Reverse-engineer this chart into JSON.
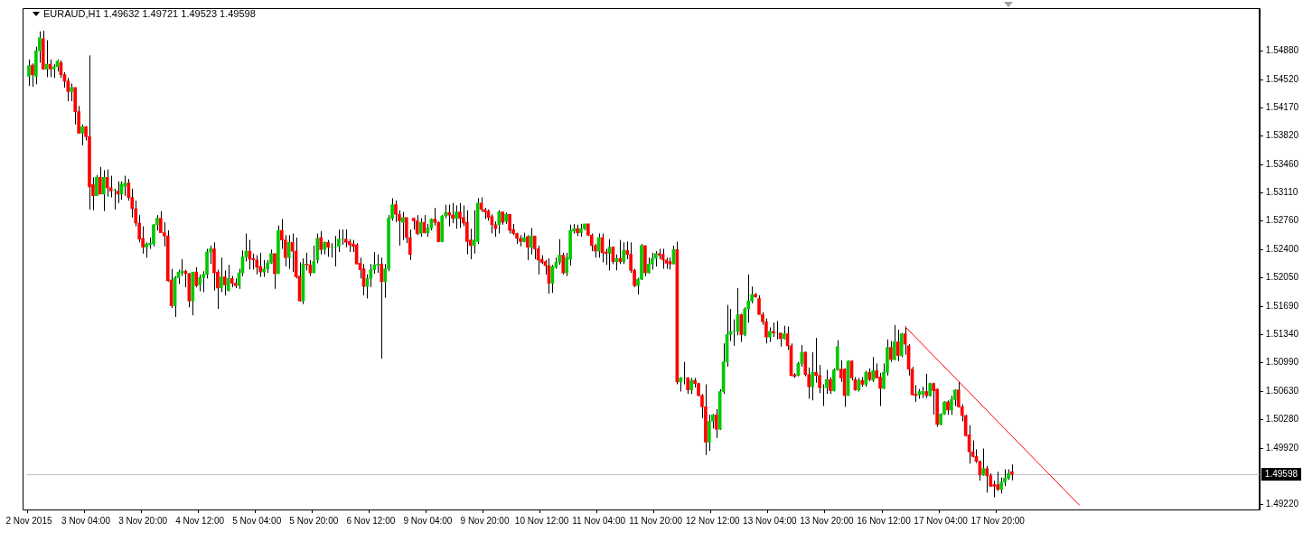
{
  "chart_data": {
    "type": "candlestick",
    "title": "EURAUD,H1  1.49632 1.49721 1.49523 1.49598",
    "categories": [
      "2 Nov 2015",
      null,
      null,
      null,
      null,
      null,
      null,
      null,
      null,
      null,
      null,
      null,
      null,
      null,
      null,
      null,
      "3 Nov 04:00",
      null,
      null,
      null,
      null,
      null,
      null,
      null,
      null,
      null,
      null,
      null,
      null,
      null,
      null,
      null,
      "3 Nov 20:00",
      null,
      null,
      null,
      null,
      null,
      null,
      null,
      null,
      null,
      null,
      null,
      null,
      null,
      null,
      null,
      "4 Nov 12:00",
      null,
      null,
      null,
      null,
      null,
      null,
      null,
      null,
      null,
      null,
      null,
      null,
      null,
      null,
      null,
      "5 Nov 04:00",
      null,
      null,
      null,
      null,
      null,
      null,
      null,
      null,
      null,
      null,
      null,
      null,
      null,
      null,
      null,
      "5 Nov 20:00",
      null,
      null,
      null,
      null,
      null,
      null,
      null,
      null,
      null,
      null,
      null,
      null,
      null,
      null,
      null,
      "6 Nov 12:00",
      null,
      null,
      null,
      null,
      null,
      null,
      null,
      null,
      null,
      null,
      null,
      null,
      null,
      null,
      null,
      "9 Nov 04:00",
      null,
      null,
      null,
      null,
      null,
      null,
      null,
      null,
      null,
      null,
      null,
      null,
      null,
      null,
      null,
      "9 Nov 20:00",
      null,
      null,
      null,
      null,
      null,
      null,
      null,
      null,
      null,
      null,
      null,
      null,
      null,
      null,
      null,
      "10 Nov 12:00",
      null,
      null,
      null,
      null,
      null,
      null,
      null,
      null,
      null,
      null,
      null,
      null,
      null,
      null,
      null,
      "11 Nov 04:00",
      null,
      null,
      null,
      null,
      null,
      null,
      null,
      null,
      null,
      null,
      null,
      null,
      null,
      null,
      null,
      "11 Nov 20:00",
      null,
      null,
      null,
      null,
      null,
      null,
      null,
      null,
      null,
      null,
      null,
      null,
      null,
      null,
      null,
      "12 Nov 12:00",
      null,
      null,
      null,
      null,
      null,
      null,
      null,
      null,
      null,
      null,
      null,
      null,
      null,
      null,
      null,
      "13 Nov 04:00",
      null,
      null,
      null,
      null,
      null,
      null,
      null,
      null,
      null,
      null,
      null,
      null,
      null,
      null,
      null,
      "13 Nov 20:00",
      null,
      null,
      null,
      null,
      null,
      null,
      null,
      null,
      null,
      null,
      null,
      null,
      null,
      null,
      null,
      "16 Nov 12:00",
      null,
      null,
      null,
      null,
      null,
      null,
      null,
      null,
      null,
      null,
      null,
      null,
      null,
      null,
      null,
      "17 Nov 04:00",
      null,
      null,
      null,
      null,
      null,
      null,
      null,
      null,
      null,
      null,
      null,
      null,
      null,
      null,
      null,
      "17 Nov 20:00",
      null,
      null,
      null,
      null,
      null,
      null,
      null,
      null,
      null,
      null,
      null,
      null,
      null,
      null,
      null,
      null,
      null,
      null,
      null,
      null,
      null,
      null,
      null,
      null,
      null,
      null,
      null,
      null,
      null,
      null,
      null,
      null,
      null,
      null,
      null,
      null,
      null,
      null,
      null,
      null,
      null,
      null,
      null,
      null,
      null,
      null,
      null,
      null,
      null,
      null,
      null,
      null,
      null,
      null,
      null,
      null,
      null,
      null,
      null,
      null,
      null,
      null,
      null,
      null,
      null,
      null,
      null,
      null,
      null,
      null,
      null,
      null,
      null
    ],
    "ohlc": [
      [
        1.5456,
        1.5477,
        1.5444,
        1.5469
      ],
      [
        1.547,
        1.5472,
        1.5443,
        1.5458
      ],
      [
        1.5456,
        1.5493,
        1.5446,
        1.5488
      ],
      [
        1.5488,
        1.5512,
        1.5473,
        1.5504
      ],
      [
        1.5503,
        1.5513,
        1.5464,
        1.5465
      ],
      [
        1.5465,
        1.5501,
        1.5455,
        1.5471
      ],
      [
        1.5471,
        1.5477,
        1.5455,
        1.5465
      ],
      [
        1.5465,
        1.5471,
        1.5454,
        1.5468
      ],
      [
        1.5468,
        1.5477,
        1.5462,
        1.5475
      ],
      [
        1.5473,
        1.5476,
        1.5454,
        1.5458
      ],
      [
        1.5458,
        1.5461,
        1.5442,
        1.545
      ],
      [
        1.545,
        1.5454,
        1.5425,
        1.5437
      ],
      [
        1.5437,
        1.5447,
        1.5425,
        1.5442
      ],
      [
        1.5442,
        1.5442,
        1.5396,
        1.5412
      ],
      [
        1.5412,
        1.5419,
        1.5385,
        1.5385
      ],
      [
        1.5385,
        1.5396,
        1.537,
        1.5393
      ],
      [
        1.5393,
        1.5394,
        1.5376,
        1.5381
      ],
      [
        1.5381,
        1.5482,
        1.529,
        1.5318
      ],
      [
        1.5321,
        1.533,
        1.5289,
        1.5307
      ],
      [
        1.5307,
        1.5333,
        1.5307,
        1.533
      ],
      [
        1.533,
        1.5343,
        1.5309,
        1.5309
      ],
      [
        1.5309,
        1.5339,
        1.5288,
        1.533
      ],
      [
        1.533,
        1.534,
        1.5306,
        1.5317
      ],
      [
        1.5317,
        1.5332,
        1.5305,
        1.5313
      ],
      [
        1.5314,
        1.5316,
        1.529,
        1.5314
      ],
      [
        1.5313,
        1.5325,
        1.5298,
        1.5309
      ],
      [
        1.5309,
        1.5325,
        1.5302,
        1.5322
      ],
      [
        1.5319,
        1.5332,
        1.5307,
        1.5323
      ],
      [
        1.5323,
        1.5328,
        1.5301,
        1.5305
      ],
      [
        1.5305,
        1.5316,
        1.528,
        1.5291
      ],
      [
        1.5291,
        1.5301,
        1.5269,
        1.5273
      ],
      [
        1.5273,
        1.5283,
        1.5249,
        1.5253
      ],
      [
        1.5254,
        1.5269,
        1.5235,
        1.5243
      ],
      [
        1.5243,
        1.5249,
        1.523,
        1.5247
      ],
      [
        1.5246,
        1.5255,
        1.5241,
        1.5248
      ],
      [
        1.5247,
        1.5272,
        1.5244,
        1.5271
      ],
      [
        1.5271,
        1.5283,
        1.5264,
        1.5279
      ],
      [
        1.5279,
        1.5288,
        1.5261,
        1.5261
      ],
      [
        1.5261,
        1.5274,
        1.5244,
        1.5257
      ],
      [
        1.5257,
        1.5264,
        1.52,
        1.5201
      ],
      [
        1.5202,
        1.5216,
        1.5167,
        1.517
      ],
      [
        1.517,
        1.5207,
        1.5156,
        1.5205
      ],
      [
        1.5205,
        1.5215,
        1.5197,
        1.5212
      ],
      [
        1.5211,
        1.5228,
        1.5207,
        1.5213
      ],
      [
        1.5213,
        1.5215,
        1.5193,
        1.521
      ],
      [
        1.521,
        1.5211,
        1.5168,
        1.5176
      ],
      [
        1.5176,
        1.5212,
        1.5158,
        1.5212
      ],
      [
        1.5212,
        1.5218,
        1.5193,
        1.5195
      ],
      [
        1.5196,
        1.5209,
        1.5188,
        1.5205
      ],
      [
        1.5205,
        1.5213,
        1.5187,
        1.5209
      ],
      [
        1.5209,
        1.5241,
        1.5204,
        1.5237
      ],
      [
        1.5237,
        1.5245,
        1.5222,
        1.5241
      ],
      [
        1.5241,
        1.5249,
        1.5189,
        1.5211
      ],
      [
        1.5212,
        1.5215,
        1.5166,
        1.5192
      ],
      [
        1.5192,
        1.523,
        1.5187,
        1.5206
      ],
      [
        1.5206,
        1.5214,
        1.5183,
        1.5196
      ],
      [
        1.5189,
        1.5221,
        1.5188,
        1.5204
      ],
      [
        1.5204,
        1.5207,
        1.5193,
        1.5198
      ],
      [
        1.5198,
        1.5204,
        1.5192,
        1.5195
      ],
      [
        1.5195,
        1.5216,
        1.5191,
        1.5211
      ],
      [
        1.5211,
        1.5239,
        1.5207,
        1.5231
      ],
      [
        1.5231,
        1.526,
        1.5225,
        1.5238
      ],
      [
        1.5238,
        1.5252,
        1.5215,
        1.5228
      ],
      [
        1.5229,
        1.5235,
        1.5215,
        1.5227
      ],
      [
        1.5227,
        1.5233,
        1.5209,
        1.5218
      ],
      [
        1.5219,
        1.5236,
        1.5206,
        1.5212
      ],
      [
        1.5212,
        1.5227,
        1.5206,
        1.5216
      ],
      [
        1.5216,
        1.5227,
        1.5211,
        1.5223
      ],
      [
        1.5223,
        1.524,
        1.5222,
        1.5235
      ],
      [
        1.5235,
        1.5235,
        1.5191,
        1.521
      ],
      [
        1.521,
        1.527,
        1.521,
        1.5264
      ],
      [
        1.5264,
        1.5278,
        1.5241,
        1.5252
      ],
      [
        1.5252,
        1.5258,
        1.5219,
        1.523
      ],
      [
        1.523,
        1.5258,
        1.5216,
        1.5249
      ],
      [
        1.5249,
        1.526,
        1.5212,
        1.5238
      ],
      [
        1.5238,
        1.5255,
        1.5204,
        1.5206
      ],
      [
        1.5207,
        1.5224,
        1.5175,
        1.5176
      ],
      [
        1.5176,
        1.5229,
        1.5172,
        1.5222
      ],
      [
        1.5222,
        1.5236,
        1.5214,
        1.5221
      ],
      [
        1.5221,
        1.5227,
        1.5207,
        1.5211
      ],
      [
        1.5211,
        1.5245,
        1.5211,
        1.5225
      ],
      [
        1.5227,
        1.526,
        1.5223,
        1.5254
      ],
      [
        1.5255,
        1.5263,
        1.5234,
        1.524
      ],
      [
        1.524,
        1.525,
        1.5234,
        1.5249
      ],
      [
        1.5249,
        1.5252,
        1.5231,
        1.5243
      ],
      [
        1.5243,
        1.5248,
        1.523,
        1.5243
      ],
      [
        1.5243,
        1.5257,
        1.5219,
        1.5243
      ],
      [
        1.5244,
        1.5265,
        1.5237,
        1.5253
      ],
      [
        1.5253,
        1.5265,
        1.5246,
        1.5253
      ],
      [
        1.5253,
        1.5265,
        1.5243,
        1.5249
      ],
      [
        1.525,
        1.5253,
        1.5237,
        1.5246
      ],
      [
        1.5247,
        1.5252,
        1.5237,
        1.5244
      ],
      [
        1.5246,
        1.5248,
        1.5222,
        1.5222
      ],
      [
        1.5223,
        1.523,
        1.5204,
        1.5215
      ],
      [
        1.5216,
        1.5222,
        1.5183,
        1.5194
      ],
      [
        1.5194,
        1.5209,
        1.5179,
        1.5204
      ],
      [
        1.5204,
        1.5222,
        1.5193,
        1.5215
      ],
      [
        1.5215,
        1.5237,
        1.521,
        1.5221
      ],
      [
        1.5221,
        1.5234,
        1.5211,
        1.5222
      ],
      [
        1.5222,
        1.523,
        1.5104,
        1.52
      ],
      [
        1.52,
        1.5222,
        1.518,
        1.5216
      ],
      [
        1.5216,
        1.5283,
        1.5213,
        1.5279
      ],
      [
        1.5279,
        1.5304,
        1.5276,
        1.5296
      ],
      [
        1.5296,
        1.5301,
        1.5274,
        1.5284
      ],
      [
        1.5284,
        1.5289,
        1.5245,
        1.5276
      ],
      [
        1.5274,
        1.5287,
        1.5252,
        1.528
      ],
      [
        1.528,
        1.528,
        1.5248,
        1.5255
      ],
      [
        1.5255,
        1.5265,
        1.5227,
        1.5234
      ],
      [
        1.5279,
        1.528,
        1.5265,
        1.5276
      ],
      [
        1.5276,
        1.5283,
        1.5258,
        1.526
      ],
      [
        1.526,
        1.5279,
        1.5256,
        1.5274
      ],
      [
        1.5274,
        1.5283,
        1.526,
        1.5261
      ],
      [
        1.5261,
        1.5272,
        1.5256,
        1.5267
      ],
      [
        1.5267,
        1.5279,
        1.5264,
        1.5278
      ],
      [
        1.5278,
        1.5292,
        1.527,
        1.5274
      ],
      [
        1.5274,
        1.5275,
        1.5249,
        1.525
      ],
      [
        1.525,
        1.5283,
        1.5249,
        1.5282
      ],
      [
        1.5282,
        1.5296,
        1.5279,
        1.5286
      ],
      [
        1.5286,
        1.5296,
        1.5269,
        1.5283
      ],
      [
        1.5283,
        1.5298,
        1.5273,
        1.5279
      ],
      [
        1.5279,
        1.5295,
        1.5266,
        1.5287
      ],
      [
        1.5287,
        1.5298,
        1.5267,
        1.5279
      ],
      [
        1.528,
        1.5295,
        1.5269,
        1.5273
      ],
      [
        1.5274,
        1.5289,
        1.5234,
        1.525
      ],
      [
        1.5252,
        1.5266,
        1.5228,
        1.5245
      ],
      [
        1.5245,
        1.5289,
        1.5235,
        1.5252
      ],
      [
        1.525,
        1.5304,
        1.5247,
        1.5298
      ],
      [
        1.5298,
        1.5305,
        1.5287,
        1.529
      ],
      [
        1.529,
        1.5292,
        1.5278,
        1.5287
      ],
      [
        1.5288,
        1.529,
        1.5276,
        1.528
      ],
      [
        1.5281,
        1.5284,
        1.526,
        1.5271
      ],
      [
        1.5271,
        1.5275,
        1.5256,
        1.5266
      ],
      [
        1.5271,
        1.5289,
        1.526,
        1.5287
      ],
      [
        1.5287,
        1.5287,
        1.5271,
        1.5274
      ],
      [
        1.5275,
        1.5286,
        1.5272,
        1.5284
      ],
      [
        1.5284,
        1.5284,
        1.526,
        1.5264
      ],
      [
        1.5265,
        1.5272,
        1.5258,
        1.526
      ],
      [
        1.526,
        1.5261,
        1.5247,
        1.5254
      ],
      [
        1.5254,
        1.5258,
        1.5244,
        1.525
      ],
      [
        1.525,
        1.5261,
        1.5249,
        1.5255
      ],
      [
        1.5256,
        1.5258,
        1.5227,
        1.5243
      ],
      [
        1.5243,
        1.5267,
        1.5234,
        1.5257
      ],
      [
        1.5257,
        1.5257,
        1.5228,
        1.5241
      ],
      [
        1.5241,
        1.5245,
        1.5209,
        1.5227
      ],
      [
        1.5228,
        1.5233,
        1.5222,
        1.5224
      ],
      [
        1.5225,
        1.5227,
        1.5209,
        1.522
      ],
      [
        1.522,
        1.5229,
        1.5185,
        1.5198
      ],
      [
        1.5198,
        1.5221,
        1.5186,
        1.5219
      ],
      [
        1.5218,
        1.523,
        1.5216,
        1.5224
      ],
      [
        1.5224,
        1.5253,
        1.5221,
        1.5233
      ],
      [
        1.5233,
        1.5236,
        1.5209,
        1.5211
      ],
      [
        1.5211,
        1.5236,
        1.5207,
        1.523
      ],
      [
        1.5228,
        1.5271,
        1.522,
        1.5264
      ],
      [
        1.5263,
        1.5272,
        1.526,
        1.5266
      ],
      [
        1.5266,
        1.5271,
        1.5257,
        1.5261
      ],
      [
        1.5261,
        1.5272,
        1.5256,
        1.5266
      ],
      [
        1.5266,
        1.5272,
        1.5264,
        1.5272
      ],
      [
        1.5272,
        1.5272,
        1.5257,
        1.5258
      ],
      [
        1.5258,
        1.526,
        1.5238,
        1.5245
      ],
      [
        1.5245,
        1.5247,
        1.523,
        1.5238
      ],
      [
        1.5238,
        1.526,
        1.523,
        1.5255
      ],
      [
        1.5255,
        1.526,
        1.5224,
        1.5236
      ],
      [
        1.5237,
        1.5241,
        1.5221,
        1.5235
      ],
      [
        1.5235,
        1.5253,
        1.5214,
        1.5243
      ],
      [
        1.5243,
        1.5244,
        1.5222,
        1.5225
      ],
      [
        1.5225,
        1.5234,
        1.5214,
        1.5229
      ],
      [
        1.5229,
        1.5252,
        1.5222,
        1.5225
      ],
      [
        1.5225,
        1.5249,
        1.5222,
        1.5239
      ],
      [
        1.5239,
        1.525,
        1.5228,
        1.5234
      ],
      [
        1.5234,
        1.5249,
        1.5211,
        1.5214
      ],
      [
        1.5214,
        1.5216,
        1.5193,
        1.5195
      ],
      [
        1.5195,
        1.5205,
        1.5184,
        1.5203
      ],
      [
        1.5203,
        1.5247,
        1.5202,
        1.5245
      ],
      [
        1.5245,
        1.5245,
        1.5207,
        1.5211
      ],
      [
        1.5211,
        1.523,
        1.521,
        1.5222
      ],
      [
        1.5222,
        1.5236,
        1.5215,
        1.5229
      ],
      [
        1.5229,
        1.5238,
        1.5219,
        1.5235
      ],
      [
        1.5235,
        1.5241,
        1.5228,
        1.5233
      ],
      [
        1.5234,
        1.5241,
        1.5216,
        1.5227
      ],
      [
        1.5227,
        1.523,
        1.5216,
        1.5223
      ],
      [
        1.5225,
        1.523,
        1.5215,
        1.5222
      ],
      [
        1.5222,
        1.5245,
        1.5222,
        1.524
      ],
      [
        1.524,
        1.525,
        1.5072,
        1.5075
      ],
      [
        1.5075,
        1.5081,
        1.5063,
        1.508
      ],
      [
        1.508,
        1.51,
        1.5072,
        1.508
      ],
      [
        1.508,
        1.5081,
        1.506,
        1.5065
      ],
      [
        1.5065,
        1.508,
        1.506,
        1.5077
      ],
      [
        1.5077,
        1.508,
        1.5068,
        1.5073
      ],
      [
        1.5073,
        1.5074,
        1.5057,
        1.5058
      ],
      [
        1.5058,
        1.506,
        1.503,
        1.5044
      ],
      [
        1.5044,
        1.5072,
        1.4984,
        1.5
      ],
      [
        1.5,
        1.5034,
        1.4989,
        1.5026
      ],
      [
        1.5026,
        1.5035,
        1.5017,
        1.5034
      ],
      [
        1.5034,
        1.5041,
        1.5005,
        1.5016
      ],
      [
        1.5016,
        1.5066,
        1.5015,
        1.5063
      ],
      [
        1.5063,
        1.5123,
        1.506,
        1.51
      ],
      [
        1.51,
        1.5171,
        1.5094,
        1.5134
      ],
      [
        1.5134,
        1.5166,
        1.5126,
        1.5138
      ],
      [
        1.5138,
        1.5153,
        1.512,
        1.5138
      ],
      [
        1.5138,
        1.5192,
        1.5133,
        1.5159
      ],
      [
        1.5159,
        1.516,
        1.5125,
        1.5134
      ],
      [
        1.5134,
        1.5168,
        1.5132,
        1.5166
      ],
      [
        1.5166,
        1.5209,
        1.5149,
        1.5176
      ],
      [
        1.5176,
        1.5194,
        1.5173,
        1.5184
      ],
      [
        1.5184,
        1.5186,
        1.518,
        1.5181
      ],
      [
        1.5179,
        1.5183,
        1.5159,
        1.5159
      ],
      [
        1.5159,
        1.5162,
        1.5146,
        1.515
      ],
      [
        1.515,
        1.5154,
        1.5123,
        1.5131
      ],
      [
        1.5131,
        1.5143,
        1.5125,
        1.5138
      ],
      [
        1.5138,
        1.5149,
        1.5131,
        1.5136
      ],
      [
        1.5136,
        1.5151,
        1.5128,
        1.5136
      ],
      [
        1.5136,
        1.5136,
        1.5119,
        1.5129
      ],
      [
        1.5129,
        1.5145,
        1.5128,
        1.5135
      ],
      [
        1.5135,
        1.5144,
        1.5115,
        1.512
      ],
      [
        1.512,
        1.5123,
        1.5082,
        1.5083
      ],
      [
        1.5084,
        1.5086,
        1.508,
        1.5082
      ],
      [
        1.5083,
        1.51,
        1.5082,
        1.5098
      ],
      [
        1.5098,
        1.5121,
        1.5094,
        1.5112
      ],
      [
        1.5112,
        1.5113,
        1.5082,
        1.5084
      ],
      [
        1.5084,
        1.5093,
        1.5054,
        1.5069
      ],
      [
        1.5069,
        1.5112,
        1.5052,
        1.5087
      ],
      [
        1.5087,
        1.513,
        1.5074,
        1.5083
      ],
      [
        1.5083,
        1.5096,
        1.5061,
        1.5068
      ],
      [
        1.5068,
        1.5072,
        1.5045,
        1.5068
      ],
      [
        1.5068,
        1.509,
        1.506,
        1.5078
      ],
      [
        1.5078,
        1.5081,
        1.506,
        1.5064
      ],
      [
        1.5064,
        1.5092,
        1.5063,
        1.509
      ],
      [
        1.509,
        1.5127,
        1.5089,
        1.5119
      ],
      [
        1.5091,
        1.5102,
        1.5075,
        1.508
      ],
      [
        1.5091,
        1.5092,
        1.5044,
        1.5058
      ],
      [
        1.5058,
        1.5102,
        1.5058,
        1.5101
      ],
      [
        1.5101,
        1.5102,
        1.5077,
        1.508
      ],
      [
        1.5078,
        1.5081,
        1.5064,
        1.5065
      ],
      [
        1.5065,
        1.508,
        1.5063,
        1.5077
      ],
      [
        1.5077,
        1.5081,
        1.5069,
        1.5072
      ],
      [
        1.5072,
        1.5089,
        1.5069,
        1.5087
      ],
      [
        1.5087,
        1.5092,
        1.5076,
        1.5078
      ],
      [
        1.5077,
        1.5106,
        1.5075,
        1.5089
      ],
      [
        1.5089,
        1.5098,
        1.508,
        1.508
      ],
      [
        1.5081,
        1.5086,
        1.5045,
        1.5067
      ],
      [
        1.5067,
        1.5098,
        1.5066,
        1.5087
      ],
      [
        1.5087,
        1.5128,
        1.5083,
        1.5118
      ],
      [
        1.5118,
        1.5126,
        1.51,
        1.5103
      ],
      [
        1.5103,
        1.5146,
        1.5102,
        1.5125
      ],
      [
        1.5125,
        1.514,
        1.5101,
        1.5108
      ],
      [
        1.5108,
        1.5136,
        1.5106,
        1.5135
      ],
      [
        1.5135,
        1.5144,
        1.5109,
        1.5122
      ],
      [
        1.512,
        1.5122,
        1.5083,
        1.5091
      ],
      [
        1.5091,
        1.5094,
        1.5058,
        1.5059
      ],
      [
        1.506,
        1.5071,
        1.505,
        1.5058
      ],
      [
        1.5059,
        1.5066,
        1.5054,
        1.5063
      ],
      [
        1.506,
        1.5069,
        1.5055,
        1.5063
      ],
      [
        1.5063,
        1.5085,
        1.5055,
        1.5058
      ],
      [
        1.5058,
        1.5074,
        1.5057,
        1.5073
      ],
      [
        1.5073,
        1.5074,
        1.5034,
        1.5064
      ],
      [
        1.5066,
        1.5067,
        1.5019,
        1.5022
      ],
      [
        1.5022,
        1.5036,
        1.5021,
        1.5035
      ],
      [
        1.5035,
        1.5051,
        1.5034,
        1.505
      ],
      [
        1.505,
        1.5052,
        1.5034,
        1.504
      ],
      [
        1.504,
        1.5058,
        1.5034,
        1.5053
      ],
      [
        1.5053,
        1.5066,
        1.5045,
        1.5065
      ],
      [
        1.5065,
        1.5075,
        1.5043,
        1.5044
      ],
      [
        1.5044,
        1.5047,
        1.5026,
        1.5033
      ],
      [
        1.5033,
        1.5034,
        1.5007,
        1.5008
      ],
      [
        1.5009,
        1.5021,
        1.4973,
        1.4988
      ],
      [
        1.4988,
        1.5002,
        1.4981,
        1.4982
      ],
      [
        1.4982,
        1.4991,
        1.4974,
        1.4976
      ],
      [
        1.4976,
        1.4977,
        1.4952,
        1.4959
      ],
      [
        1.4959,
        1.4992,
        1.4958,
        1.4967
      ],
      [
        1.4967,
        1.497,
        1.4937,
        1.4958
      ],
      [
        1.4958,
        1.4961,
        1.4944,
        1.4945
      ],
      [
        1.4947,
        1.4952,
        1.4931,
        1.4945
      ],
      [
        1.4947,
        1.4963,
        1.4939,
        1.4941
      ],
      [
        1.4941,
        1.4956,
        1.4936,
        1.495
      ],
      [
        1.495,
        1.4966,
        1.4945,
        1.4955
      ],
      [
        1.4955,
        1.4966,
        1.4953,
        1.4961
      ],
      [
        1.49632,
        1.49721,
        1.49523,
        1.49598
      ],
      null,
      null,
      null,
      null,
      null,
      null,
      null,
      null,
      null,
      null,
      null,
      null,
      null,
      null,
      null,
      null,
      null,
      null,
      null,
      null,
      null,
      null,
      null,
      null,
      null,
      null,
      null,
      null,
      null,
      null,
      null,
      null,
      null,
      null,
      null,
      null,
      null,
      null,
      null,
      null,
      null,
      null,
      null,
      null,
      null,
      null,
      null,
      null,
      null,
      null,
      null,
      null,
      null,
      null,
      null,
      null,
      null,
      null,
      null,
      null,
      null,
      null,
      null,
      null,
      null,
      null,
      null,
      null,
      null
    ],
    "series": [
      {
        "type": "line",
        "color": "#ff0000",
        "values": [
          null,
          null,
          null,
          null,
          null,
          null,
          null,
          null,
          null,
          null,
          null,
          null,
          null,
          null,
          null,
          null,
          null,
          null,
          null,
          null,
          null,
          null,
          null,
          null,
          null,
          null,
          null,
          null,
          null,
          null,
          null,
          null,
          null,
          null,
          null,
          null,
          null,
          null,
          null,
          null,
          null,
          null,
          null,
          null,
          null,
          null,
          null,
          null,
          null,
          null,
          null,
          null,
          null,
          null,
          null,
          null,
          null,
          null,
          null,
          null,
          null,
          null,
          null,
          null,
          null,
          null,
          null,
          null,
          null,
          null,
          null,
          null,
          null,
          null,
          null,
          null,
          null,
          null,
          null,
          null,
          null,
          null,
          null,
          null,
          null,
          null,
          null,
          null,
          null,
          null,
          null,
          null,
          null,
          null,
          null,
          null,
          null,
          null,
          null,
          null,
          null,
          null,
          null,
          null,
          null,
          null,
          null,
          null,
          null,
          null,
          null,
          null,
          null,
          null,
          null,
          null,
          null,
          null,
          null,
          null,
          null,
          null,
          null,
          null,
          null,
          null,
          null,
          null,
          null,
          null,
          null,
          null,
          null,
          null,
          null,
          null,
          null,
          null,
          null,
          null,
          null,
          null,
          null,
          null,
          null,
          null,
          null,
          null,
          null,
          null,
          null,
          null,
          null,
          null,
          null,
          null,
          null,
          null,
          null,
          null,
          null,
          null,
          null,
          null,
          null,
          null,
          null,
          null,
          null,
          null,
          null,
          null,
          null,
          null,
          null,
          null,
          null,
          null,
          null,
          null,
          null,
          null,
          null,
          null,
          null,
          null,
          null,
          null,
          null,
          null,
          null,
          null,
          null,
          null,
          null,
          null,
          null,
          null,
          null,
          null,
          null,
          null,
          null,
          null,
          null,
          null,
          null,
          null,
          null,
          null,
          null,
          null,
          null,
          null,
          null,
          null,
          null,
          null,
          null,
          null,
          null,
          null,
          null,
          null,
          null,
          null,
          null,
          null,
          null,
          null,
          null,
          null,
          null,
          null,
          null,
          null,
          null,
          null,
          null,
          null,
          null,
          null,
          null,
          null,
          null,
          null,
          1.5144,
          null,
          null,
          null,
          null,
          null,
          null,
          null,
          null,
          null,
          null,
          null,
          null,
          null,
          null,
          null,
          null,
          null,
          null,
          null,
          null,
          null,
          null,
          null,
          null,
          null,
          null,
          null,
          null,
          null,
          null,
          null,
          null,
          null,
          null,
          null,
          null,
          null,
          null,
          null,
          null,
          null,
          null,
          null,
          null,
          null,
          null,
          null,
          null,
          1.4921,
          null,
          null,
          null,
          null,
          null,
          null,
          null,
          null,
          null,
          null,
          null,
          null,
          null,
          null,
          null,
          null,
          null,
          null,
          null,
          null,
          null,
          null,
          null,
          null,
          null,
          null,
          null,
          null,
          null,
          null,
          null,
          null,
          null,
          null,
          null,
          null,
          null,
          null,
          null,
          null,
          null,
          null,
          null,
          null,
          null,
          null,
          null,
          null,
          null,
          null
        ]
      }
    ],
    "ylim": [
      1.4916,
      1.5541
    ],
    "yticks": [
      {
        "value": 1.5488,
        "label": "1.54880"
      },
      {
        "value": 1.5452,
        "label": "1.54520"
      },
      {
        "value": 1.5417,
        "label": "1.54170"
      },
      {
        "value": 1.5382,
        "label": "1.53820"
      },
      {
        "value": 1.5346,
        "label": "1.53460"
      },
      {
        "value": 1.5311,
        "label": "1.53110"
      },
      {
        "value": 1.5276,
        "label": "1.52760"
      },
      {
        "value": 1.524,
        "label": "1.52400"
      },
      {
        "value": 1.5205,
        "label": "1.52050"
      },
      {
        "value": 1.5169,
        "label": "1.51690"
      },
      {
        "value": 1.5134,
        "label": "1.51340"
      },
      {
        "value": 1.5099,
        "label": "1.50990"
      },
      {
        "value": 1.5063,
        "label": "1.50630"
      },
      {
        "value": 1.5028,
        "label": "1.50280"
      },
      {
        "value": 1.4992,
        "label": "1.49920"
      },
      {
        "value": 1.4922,
        "label": "1.49220"
      }
    ],
    "ref_lines": [
      {
        "axis": "y",
        "value": 1.49598,
        "label": "1.49598",
        "color": "#c0c0c0"
      }
    ]
  }
}
